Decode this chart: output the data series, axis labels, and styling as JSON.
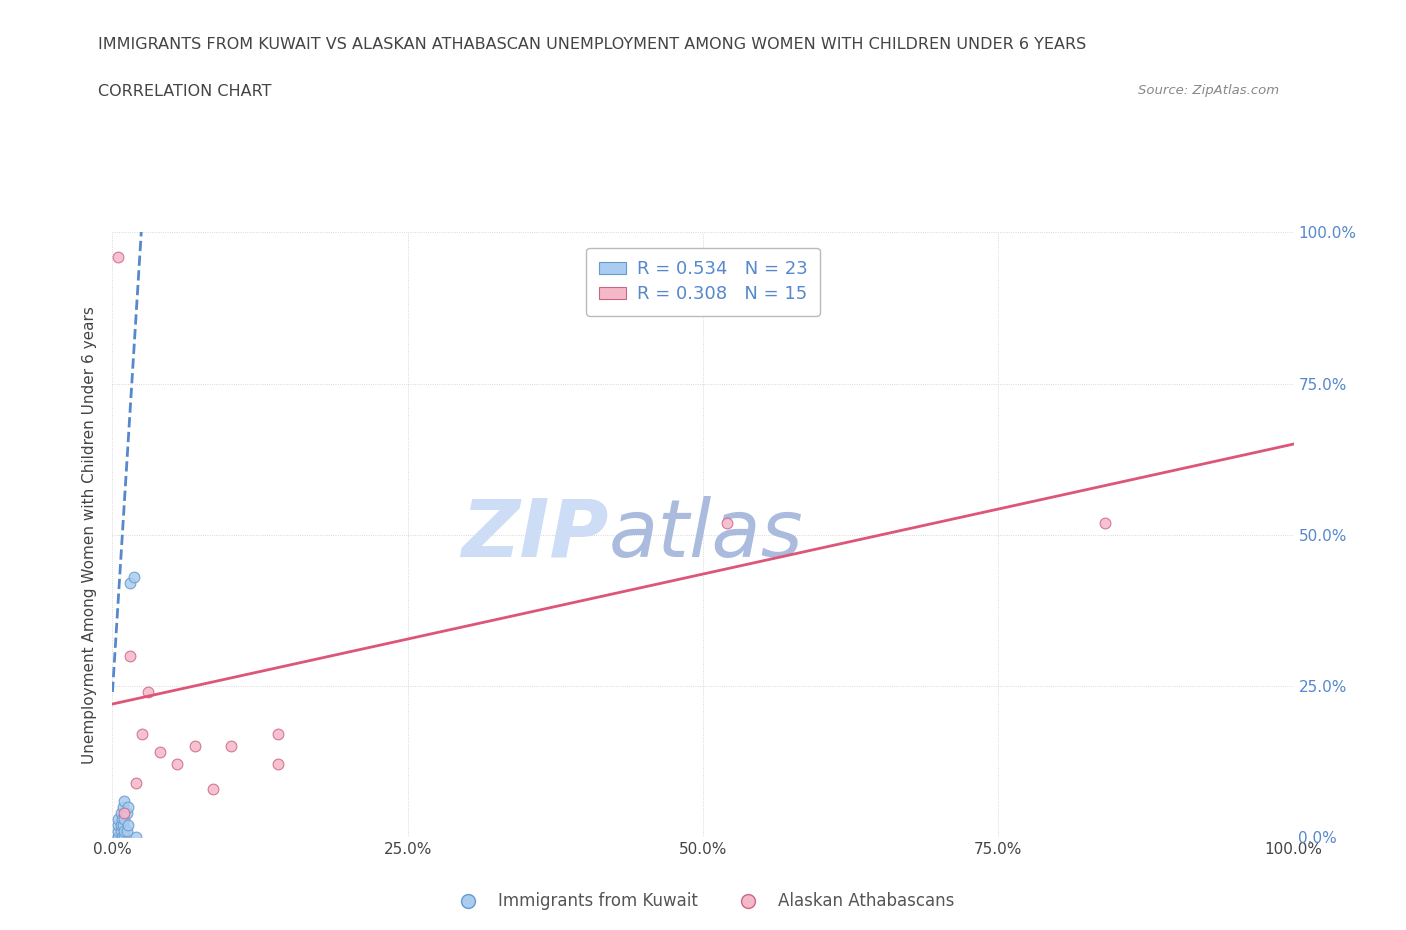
{
  "title_line1": "IMMIGRANTS FROM KUWAIT VS ALASKAN ATHABASCAN UNEMPLOYMENT AMONG WOMEN WITH CHILDREN UNDER 6 YEARS",
  "title_line2": "CORRELATION CHART",
  "source_text": "Source: ZipAtlas.com",
  "ylabel": "Unemployment Among Women with Children Under 6 years",
  "xlim": [
    0.0,
    1.0
  ],
  "ylim": [
    0.0,
    1.0
  ],
  "xtick_labels": [
    "0.0%",
    "25.0%",
    "50.0%",
    "75.0%",
    "100.0%"
  ],
  "xtick_vals": [
    0.0,
    0.25,
    0.5,
    0.75,
    1.0
  ],
  "right_ytick_labels": [
    "0.0%",
    "25.0%",
    "50.0%",
    "75.0%",
    "100.0%"
  ],
  "right_ytick_vals": [
    0.0,
    0.25,
    0.5,
    0.75,
    1.0
  ],
  "blue_scatter_x": [
    0.005,
    0.005,
    0.005,
    0.005,
    0.005,
    0.007,
    0.007,
    0.007,
    0.008,
    0.008,
    0.009,
    0.009,
    0.01,
    0.01,
    0.01,
    0.01,
    0.012,
    0.012,
    0.013,
    0.013,
    0.015,
    0.018,
    0.02
  ],
  "blue_scatter_y": [
    0.0,
    0.0,
    0.01,
    0.02,
    0.03,
    0.01,
    0.02,
    0.04,
    0.0,
    0.03,
    0.02,
    0.05,
    0.0,
    0.01,
    0.03,
    0.06,
    0.01,
    0.04,
    0.02,
    0.05,
    0.42,
    0.43,
    0.0
  ],
  "pink_scatter_x": [
    0.005,
    0.01,
    0.015,
    0.02,
    0.025,
    0.03,
    0.04,
    0.055,
    0.07,
    0.085,
    0.1,
    0.14,
    0.14,
    0.52,
    0.84
  ],
  "pink_scatter_y": [
    0.96,
    0.04,
    0.3,
    0.09,
    0.17,
    0.24,
    0.14,
    0.12,
    0.15,
    0.08,
    0.15,
    0.17,
    0.12,
    0.52,
    0.52
  ],
  "blue_R": 0.534,
  "blue_N": 23,
  "pink_R": 0.308,
  "pink_N": 15,
  "blue_line_x": [
    0.0,
    0.025
  ],
  "blue_line_y": [
    0.24,
    1.02
  ],
  "pink_line_x": [
    0.0,
    1.0
  ],
  "pink_line_y": [
    0.22,
    0.65
  ],
  "blue_color": "#aaccf0",
  "blue_edge_color": "#6699cc",
  "blue_line_color": "#5588cc",
  "pink_color": "#f5b8c8",
  "pink_edge_color": "#cc6688",
  "pink_line_color": "#dd5577",
  "scatter_size": 60,
  "watermark_text": "ZIP",
  "watermark_text2": "atlas",
  "watermark_color": "#ccddf5",
  "watermark_color2": "#aabbdd",
  "background_color": "#ffffff",
  "grid_color": "#cccccc",
  "title_color": "#444444",
  "source_color": "#888888",
  "right_axis_color": "#5588cc"
}
